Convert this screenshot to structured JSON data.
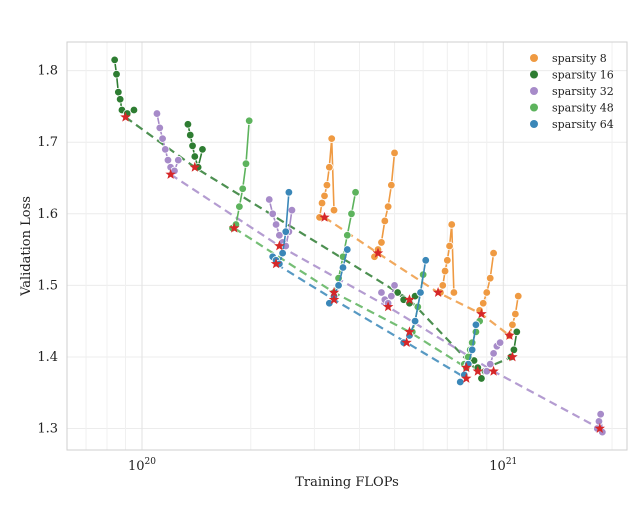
{
  "chart_data": {
    "type": "scatter",
    "xlabel": "Training FLOPs",
    "ylabel": "Validation Loss",
    "xscale": "log",
    "xlim": [
      6.2e+19,
      2.2e+21
    ],
    "ylim": [
      1.27,
      1.84
    ],
    "grid": true,
    "legend_position": "top-right",
    "y_ticks": [
      "1.3",
      "1.4",
      "1.5",
      "1.6",
      "1.7",
      "1.8"
    ],
    "x_ticks": [
      {
        "value": 1e+20,
        "base": "10",
        "exp": "20"
      },
      {
        "value": 1e+21,
        "base": "10",
        "exp": "21"
      }
    ],
    "series": [
      {
        "name": "sparsity 8",
        "color": "#ef9a42",
        "clusters": [
          {
            "x": [
              3.1e+20,
              3.15e+20,
              3.2e+20,
              3.25e+20,
              3.3e+20,
              3.35e+20,
              3.4e+20
            ],
            "y": [
              1.595,
              1.615,
              1.625,
              1.64,
              1.665,
              1.705,
              1.605
            ]
          },
          {
            "x": [
              4.4e+20,
              4.5e+20,
              4.6e+20,
              4.7e+20,
              4.8e+20,
              4.9e+20,
              5e+20
            ],
            "y": [
              1.54,
              1.55,
              1.56,
              1.59,
              1.61,
              1.64,
              1.685
            ]
          },
          {
            "x": [
              6.7e+20,
              6.8e+20,
              6.9e+20,
              7e+20,
              7.1e+20,
              7.2e+20,
              7.3e+20
            ],
            "y": [
              1.49,
              1.5,
              1.52,
              1.535,
              1.555,
              1.585,
              1.49
            ]
          },
          {
            "x": [
              8.6e+20,
              8.8e+20,
              9e+20,
              9.2e+20,
              9.4e+20
            ],
            "y": [
              1.465,
              1.475,
              1.49,
              1.51,
              1.545
            ]
          },
          {
            "x": [
              1.04e+21,
              1.06e+21,
              1.08e+21,
              1.1e+21
            ],
            "y": [
              1.43,
              1.445,
              1.46,
              1.485
            ]
          }
        ],
        "frontier": {
          "x": [
            3.2e+20,
            4.5e+20,
            6.6e+20,
            8.7e+20,
            1.04e+21
          ],
          "y": [
            1.595,
            1.545,
            1.49,
            1.46,
            1.43
          ]
        }
      },
      {
        "name": "sparsity 16",
        "color": "#2e7d32",
        "clusters": [
          {
            "x": [
              8.4e+19,
              8.5e+19,
              8.6e+19,
              8.7e+19,
              8.8e+19,
              9.1e+19,
              9.5e+19
            ],
            "y": [
              1.815,
              1.795,
              1.77,
              1.76,
              1.745,
              1.74,
              1.745
            ]
          },
          {
            "x": [
              1.34e+20,
              1.36e+20,
              1.38e+20,
              1.4e+20,
              1.43e+20,
              1.47e+20
            ],
            "y": [
              1.725,
              1.71,
              1.695,
              1.68,
              1.665,
              1.69
            ]
          },
          {
            "x": [
              5.1e+20,
              5.3e+20,
              5.5e+20,
              5.7e+20
            ],
            "y": [
              1.49,
              1.48,
              1.475,
              1.485
            ]
          },
          {
            "x": [
              8.3e+20,
              8.5e+20,
              8.7e+20,
              8.9e+20
            ],
            "y": [
              1.395,
              1.385,
              1.37,
              1.38
            ]
          },
          {
            "x": [
              1.05e+21,
              1.07e+21,
              1.09e+21
            ],
            "y": [
              1.4,
              1.41,
              1.435
            ]
          }
        ],
        "frontier": {
          "x": [
            9e+19,
            1.4e+20,
            5.5e+20,
            8.5e+20,
            1.06e+21
          ],
          "y": [
            1.735,
            1.665,
            1.48,
            1.38,
            1.4
          ]
        }
      },
      {
        "name": "sparsity 32",
        "color": "#a78bc9",
        "clusters": [
          {
            "x": [
              1.1e+20,
              1.12e+20,
              1.14e+20,
              1.16e+20,
              1.18e+20,
              1.2e+20,
              1.23e+20,
              1.26e+20
            ],
            "y": [
              1.74,
              1.72,
              1.705,
              1.69,
              1.675,
              1.665,
              1.66,
              1.675
            ]
          },
          {
            "x": [
              2.25e+20,
              2.3e+20,
              2.35e+20,
              2.4e+20,
              2.45e+20,
              2.5e+20,
              2.55e+20,
              2.6e+20
            ],
            "y": [
              1.62,
              1.6,
              1.585,
              1.57,
              1.56,
              1.555,
              1.575,
              1.605
            ]
          },
          {
            "x": [
              4.6e+20,
              4.7e+20,
              4.8e+20,
              4.9e+20,
              5e+20
            ],
            "y": [
              1.49,
              1.48,
              1.475,
              1.485,
              1.5
            ]
          },
          {
            "x": [
              9e+20,
              9.2e+20,
              9.4e+20,
              9.6e+20,
              9.8e+20
            ],
            "y": [
              1.38,
              1.39,
              1.405,
              1.415,
              1.42
            ]
          },
          {
            "x": [
              1.82e+21,
              1.84e+21,
              1.86e+21,
              1.88e+21
            ],
            "y": [
              1.3,
              1.31,
              1.32,
              1.295
            ]
          }
        ],
        "frontier": {
          "x": [
            1.2e+20,
            2.4e+20,
            4.8e+20,
            9.4e+20,
            1.85e+21
          ],
          "y": [
            1.655,
            1.555,
            1.47,
            1.38,
            1.3
          ]
        }
      },
      {
        "name": "sparsity 48",
        "color": "#5db35d",
        "clusters": [
          {
            "x": [
              1.78e+20,
              1.82e+20,
              1.86e+20,
              1.9e+20,
              1.94e+20,
              1.98e+20
            ],
            "y": [
              1.58,
              1.585,
              1.61,
              1.635,
              1.67,
              1.73
            ]
          },
          {
            "x": [
              3.4e+20,
              3.5e+20,
              3.6e+20,
              3.7e+20,
              3.8e+20,
              3.9e+20
            ],
            "y": [
              1.49,
              1.51,
              1.54,
              1.57,
              1.6,
              1.63
            ]
          },
          {
            "x": [
              5.6e+20,
              5.7e+20,
              5.8e+20,
              5.9e+20,
              6e+20
            ],
            "y": [
              1.435,
              1.45,
              1.47,
              1.49,
              1.515
            ]
          },
          {
            "x": [
              7.8e+20,
              7.9e+20,
              8e+20,
              8.1e+20,
              8.2e+20,
              8.4e+20,
              8.6e+20
            ],
            "y": [
              1.39,
              1.385,
              1.4,
              1.41,
              1.42,
              1.435,
              1.45
            ]
          }
        ],
        "frontier": {
          "x": [
            1.8e+20,
            3.4e+20,
            5.5e+20,
            7.9e+20
          ],
          "y": [
            1.58,
            1.49,
            1.435,
            1.385
          ]
        }
      },
      {
        "name": "sparsity 64",
        "color": "#3a87b8",
        "clusters": [
          {
            "x": [
              2.3e+20,
              2.35e+20,
              2.4e+20,
              2.45e+20,
              2.5e+20,
              2.55e+20
            ],
            "y": [
              1.54,
              1.535,
              1.53,
              1.545,
              1.575,
              1.63
            ]
          },
          {
            "x": [
              3.3e+20,
              3.4e+20,
              3.5e+20,
              3.6e+20,
              3.7e+20
            ],
            "y": [
              1.475,
              1.485,
              1.5,
              1.525,
              1.55
            ]
          },
          {
            "x": [
              5.3e+20,
              5.5e+20,
              5.7e+20,
              5.9e+20,
              6.1e+20
            ],
            "y": [
              1.42,
              1.43,
              1.45,
              1.49,
              1.535
            ]
          },
          {
            "x": [
              7.6e+20,
              7.8e+20,
              8e+20,
              8.2e+20,
              8.4e+20
            ],
            "y": [
              1.365,
              1.375,
              1.39,
              1.41,
              1.445
            ]
          }
        ],
        "frontier": {
          "x": [
            2.35e+20,
            3.4e+20,
            5.4e+20,
            7.9e+20
          ],
          "y": [
            1.53,
            1.48,
            1.42,
            1.37
          ]
        }
      }
    ]
  }
}
